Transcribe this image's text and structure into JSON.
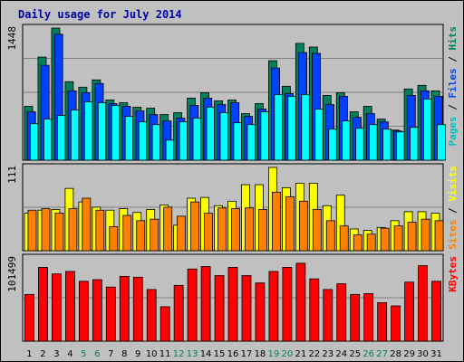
{
  "chart_data": [
    {
      "type": "bar",
      "title": "Daily usage for July 2014",
      "ylabel_parts": [
        {
          "text": "Pages",
          "color": "#00c0c0"
        },
        {
          "text": " / ",
          "color": "#000000"
        },
        {
          "text": "Files",
          "color": "#0040ff"
        },
        {
          "text": " / ",
          "color": "#000000"
        },
        {
          "text": "Hits",
          "color": "#00805c"
        }
      ],
      "max_label": "1448",
      "ylim": [
        0,
        1448
      ],
      "categories": [
        "1",
        "2",
        "3",
        "4",
        "5",
        "6",
        "7",
        "8",
        "9",
        "10",
        "11",
        "12",
        "13",
        "14",
        "15",
        "16",
        "17",
        "18",
        "19",
        "20",
        "21",
        "22",
        "23",
        "24",
        "25",
        "26",
        "27",
        "28",
        "29",
        "30",
        "31"
      ],
      "weekend_days": [
        "5",
        "6",
        "12",
        "13",
        "19",
        "20",
        "26",
        "27"
      ],
      "series": [
        {
          "name": "Hits",
          "color": "#00805c",
          "values": [
            590,
            1130,
            1448,
            860,
            800,
            880,
            660,
            630,
            580,
            570,
            500,
            520,
            680,
            740,
            650,
            660,
            510,
            620,
            1090,
            810,
            1280,
            1240,
            710,
            740,
            530,
            590,
            450,
            330,
            780,
            820,
            760
          ]
        },
        {
          "name": "Files",
          "color": "#0040ff",
          "values": [
            530,
            1040,
            1380,
            760,
            740,
            840,
            620,
            590,
            540,
            500,
            430,
            460,
            600,
            680,
            610,
            630,
            480,
            560,
            1010,
            730,
            1180,
            1170,
            610,
            700,
            470,
            510,
            420,
            320,
            710,
            760,
            700
          ]
        },
        {
          "name": "Pages",
          "color": "#00ffff",
          "values": [
            400,
            450,
            490,
            550,
            640,
            630,
            600,
            480,
            420,
            390,
            220,
            420,
            460,
            580,
            520,
            410,
            390,
            530,
            720,
            700,
            720,
            560,
            340,
            430,
            350,
            390,
            340,
            310,
            360,
            670,
            390
          ]
        }
      ]
    },
    {
      "type": "bar",
      "ylabel_parts": [
        {
          "text": "Sites",
          "color": "#ff8000"
        },
        {
          "text": " / ",
          "color": "#000000"
        },
        {
          "text": "Visits",
          "color": "#ffff00"
        }
      ],
      "max_label": "111",
      "ylim": [
        0,
        111
      ],
      "categories": [
        "1",
        "2",
        "3",
        "4",
        "5",
        "6",
        "7",
        "8",
        "9",
        "10",
        "11",
        "12",
        "13",
        "14",
        "15",
        "16",
        "17",
        "18",
        "19",
        "20",
        "21",
        "22",
        "23",
        "24",
        "25",
        "26",
        "27",
        "28",
        "29",
        "30",
        "31"
      ],
      "series": [
        {
          "name": "Visits",
          "color": "#ffff00",
          "values": [
            50,
            54,
            55,
            83,
            65,
            58,
            54,
            56,
            51,
            55,
            61,
            34,
            70,
            71,
            60,
            66,
            88,
            88,
            111,
            84,
            90,
            90,
            60,
            74,
            29,
            27,
            31,
            40,
            52,
            52,
            50
          ]
        },
        {
          "name": "Sites",
          "color": "#ff8000",
          "values": [
            54,
            56,
            50,
            56,
            70,
            54,
            32,
            47,
            40,
            42,
            58,
            46,
            65,
            50,
            57,
            56,
            57,
            55,
            78,
            72,
            66,
            55,
            40,
            33,
            21,
            22,
            30,
            33,
            38,
            42,
            40
          ]
        }
      ]
    },
    {
      "type": "bar",
      "ylabel_parts": [
        {
          "text": "KBytes",
          "color": "#ff0000"
        }
      ],
      "max_label": "101499",
      "ylim": [
        0,
        101499
      ],
      "categories": [
        "1",
        "2",
        "3",
        "4",
        "5",
        "6",
        "7",
        "8",
        "9",
        "10",
        "11",
        "12",
        "13",
        "14",
        "15",
        "16",
        "17",
        "18",
        "19",
        "20",
        "21",
        "22",
        "23",
        "24",
        "25",
        "26",
        "27",
        "28",
        "29",
        "30",
        "31"
      ],
      "series": [
        {
          "name": "KBytes",
          "color": "#ff0000",
          "values": [
            57000,
            90000,
            82000,
            85000,
            73000,
            75000,
            66000,
            79000,
            78000,
            63000,
            42000,
            68000,
            88000,
            91000,
            80000,
            90000,
            80000,
            71000,
            85000,
            90000,
            95000,
            76000,
            63000,
            70000,
            57000,
            58000,
            47000,
            43000,
            72000,
            92000,
            73000
          ]
        }
      ]
    }
  ],
  "colors": {
    "background": "#c0c0c0",
    "plot_background": "#c0c0c0",
    "title": "#0000a0",
    "axis_label_weekday": "#000000",
    "axis_label_weekend": "#008060"
  }
}
